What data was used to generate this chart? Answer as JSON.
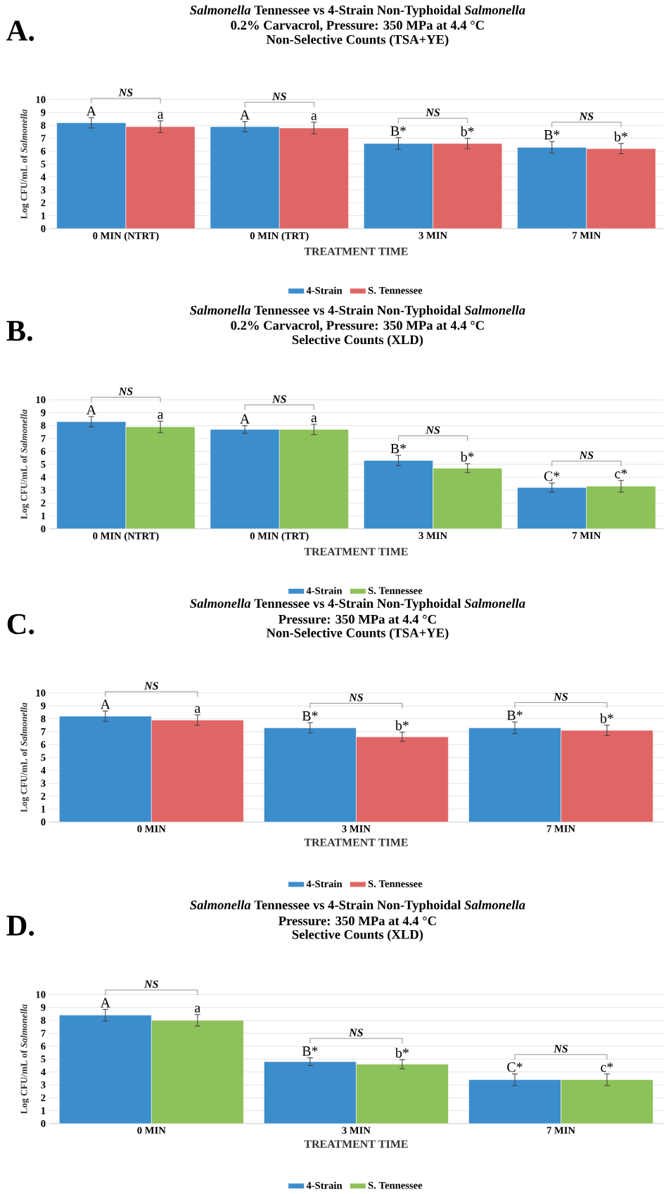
{
  "chart_data": [
    {
      "type": "bar",
      "title": "*Salmonella* Tennessee vs 4-Strain Non-Typhoidal *Salmonella*",
      "subtitle": "0.2% Carvacrol, Pressure: 350 MPa at 4.4 °C",
      "annotations": [
        "A.",
        "Non-Selective Counts (TSA+YE)",
        "NS",
        "NS",
        "NS",
        "NS"
      ],
      "xlabel": "TREATMENT TIME",
      "ylabel": "Log CFU/mL of *Salmonella*",
      "categories": [
        "0 MIN (NTRT)",
        "0 MIN (TRT)",
        "3 MIN",
        "7 MIN"
      ],
      "series": [
        {
          "name": "4-Strain",
          "color": "#3c8dcc",
          "values": [
            8.2,
            7.9,
            6.6,
            6.3
          ],
          "errors": [
            0.4,
            0.4,
            0.45,
            0.45
          ],
          "value_labels": [
            "A",
            "A",
            "B*",
            "B*"
          ]
        },
        {
          "name": "S. Tennessee",
          "color": "#e06666",
          "values": [
            7.9,
            7.8,
            6.6,
            6.2
          ],
          "errors": [
            0.45,
            0.45,
            0.4,
            0.4
          ],
          "value_labels": [
            "a",
            "a",
            "b*",
            "b*"
          ]
        }
      ],
      "ylim": [
        0,
        10
      ],
      "yticks": [
        0,
        1,
        2,
        3,
        4,
        5,
        6,
        7,
        8,
        9,
        10
      ],
      "grid": "y",
      "legend": "bottom"
    },
    {
      "type": "bar",
      "title": "*Salmonella* Tennessee vs 4-Strain Non-Typhoidal *Salmonella*",
      "subtitle": "0.2% Carvacrol, Pressure: 350 MPa at 4.4 °C",
      "annotations": [
        "B.",
        "Selective Counts (XLD)",
        "NS",
        "NS",
        "NS",
        "NS"
      ],
      "xlabel": "TREATMENT TIME",
      "ylabel": "Log CFU/mL of *Salmonella*",
      "categories": [
        "0 MIN (NTRT)",
        "0 MIN (TRT)",
        "3 MIN",
        "7 MIN"
      ],
      "series": [
        {
          "name": "4-Strain",
          "color": "#3c8dcc",
          "values": [
            8.3,
            7.7,
            5.3,
            3.2
          ],
          "errors": [
            0.4,
            0.3,
            0.4,
            0.35
          ],
          "value_labels": [
            "A",
            "A",
            "B*",
            "C*"
          ]
        },
        {
          "name": "S. Tennessee",
          "color": "#8dc15a",
          "values": [
            7.9,
            7.7,
            4.7,
            3.3
          ],
          "errors": [
            0.45,
            0.4,
            0.35,
            0.45
          ],
          "value_labels": [
            "a",
            "a",
            "b*",
            "c*"
          ]
        }
      ],
      "ylim": [
        0,
        10
      ],
      "yticks": [
        0,
        1,
        2,
        3,
        4,
        5,
        6,
        7,
        8,
        9,
        10
      ],
      "grid": "y",
      "legend": "bottom"
    },
    {
      "type": "bar",
      "title": "*Salmonella* Tennessee vs 4-Strain Non-Typhoidal *Salmonella*",
      "subtitle": "Pressure: 350 MPa at 4.4 °C",
      "annotations": [
        "C.",
        "Non-Selective Counts (TSA+YE)",
        "NS",
        "NS",
        "NS"
      ],
      "xlabel": "TREATMENT TIME",
      "ylabel": "Log CFU/mL of *Salmonella*",
      "categories": [
        "0 MIN",
        "3 MIN",
        "7 MIN"
      ],
      "series": [
        {
          "name": "4-Strain",
          "color": "#3c8dcc",
          "values": [
            8.2,
            7.3,
            7.3
          ],
          "errors": [
            0.4,
            0.4,
            0.45
          ],
          "value_labels": [
            "A",
            "B*",
            "B*"
          ]
        },
        {
          "name": "S. Tennessee",
          "color": "#e06666",
          "values": [
            7.9,
            6.6,
            7.1
          ],
          "errors": [
            0.4,
            0.35,
            0.4
          ],
          "value_labels": [
            "a",
            "b*",
            "b*"
          ]
        }
      ],
      "ylim": [
        0,
        10
      ],
      "yticks": [
        0,
        1,
        2,
        3,
        4,
        5,
        6,
        7,
        8,
        9,
        10
      ],
      "grid": "y",
      "legend": "bottom"
    },
    {
      "type": "bar",
      "title": "*Salmonella* Tennessee vs 4-Strain Non-Typhoidal *Salmonella*",
      "subtitle": "Pressure: 350 MPa at 4.4 °C",
      "annotations": [
        "D.",
        "Selective Counts (XLD)",
        "NS",
        "NS",
        "NS"
      ],
      "xlabel": "TREATMENT TIME",
      "ylabel": "Log CFU/mL of *Salmonella*",
      "categories": [
        "0 MIN",
        "3 MIN",
        "7 MIN"
      ],
      "series": [
        {
          "name": "4-Strain",
          "color": "#3c8dcc",
          "values": [
            8.4,
            4.8,
            3.4
          ],
          "errors": [
            0.45,
            0.3,
            0.45
          ],
          "value_labels": [
            "A",
            "B*",
            "C*"
          ]
        },
        {
          "name": "S. Tennessee",
          "color": "#8dc15a",
          "values": [
            8.0,
            4.6,
            3.4
          ],
          "errors": [
            0.45,
            0.35,
            0.45
          ],
          "value_labels": [
            "a",
            "b*",
            "c*"
          ]
        }
      ],
      "ylim": [
        0,
        10
      ],
      "yticks": [
        0,
        1,
        2,
        3,
        4,
        5,
        6,
        7,
        8,
        9,
        10
      ],
      "grid": "y",
      "legend": "bottom"
    }
  ]
}
